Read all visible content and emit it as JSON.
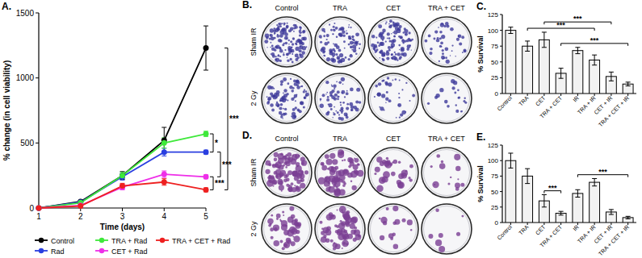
{
  "chart_data": [
    {
      "type": "line",
      "title": "A.",
      "x_label": "Time (days)",
      "y_label": "% change (in cell viability)",
      "x": [
        1,
        2,
        3,
        4,
        5
      ],
      "xlim": [
        1,
        5
      ],
      "xticks": [
        1,
        2,
        3,
        4,
        5
      ],
      "ylim": [
        0,
        1500
      ],
      "yticks": [
        0,
        500,
        1000,
        1500
      ],
      "legend": "bottom",
      "marker": "circle",
      "series": [
        {
          "name": "Control",
          "color": "#000000",
          "values": [
            0,
            50,
            250,
            520,
            1230
          ],
          "errors": [
            0,
            8,
            30,
            100,
            170
          ]
        },
        {
          "name": "Rad",
          "color": "#2a3fe0",
          "values": [
            0,
            45,
            240,
            430,
            430
          ],
          "errors": [
            0,
            6,
            25,
            30,
            15
          ]
        },
        {
          "name": "TRA + Rad",
          "color": "#3ee83a",
          "values": [
            0,
            40,
            250,
            500,
            570
          ],
          "errors": [
            0,
            6,
            25,
            40,
            20
          ]
        },
        {
          "name": "CET + Rad",
          "color": "#ee2ee8",
          "values": [
            0,
            20,
            160,
            260,
            240
          ],
          "errors": [
            0,
            5,
            20,
            25,
            15
          ]
        },
        {
          "name": "TRA + CET + Rad",
          "color": "#ee2020",
          "values": [
            0,
            15,
            170,
            200,
            140
          ],
          "errors": [
            0,
            5,
            20,
            25,
            15
          ]
        }
      ],
      "annotations": [
        {
          "label": "*",
          "between": [
            "TRA + Rad",
            "Rad"
          ]
        },
        {
          "label": "***",
          "between": [
            "Rad",
            "CET + Rad"
          ]
        },
        {
          "label": "***",
          "between": [
            "Control",
            "TRA + CET + Rad"
          ]
        },
        {
          "label": "***",
          "between": [
            "CET + Rad",
            "TRA + CET + Rad"
          ]
        }
      ]
    },
    {
      "type": "bar",
      "title": "C.",
      "y_label": "% Survival",
      "categories": [
        "Control",
        "TRA",
        "CET",
        "TRA + CET",
        "IR",
        "TRA + IR",
        "CET + IR",
        "TRA + CET + IR"
      ],
      "values": [
        100,
        75,
        85,
        32,
        68,
        53,
        27,
        15
      ],
      "errors": [
        5,
        8,
        12,
        8,
        5,
        8,
        7,
        3
      ],
      "color": "#f2f2f2",
      "ylim": [
        0,
        125
      ],
      "yticks": [
        0,
        25,
        50,
        75,
        100,
        125
      ],
      "annotations": [
        {
          "label": "***",
          "between": [
            "TRA + CET",
            "TRA + CET + IR"
          ]
        },
        {
          "label": "***",
          "between": [
            "TRA",
            "TRA + IR"
          ]
        },
        {
          "label": "***",
          "between": [
            "CET",
            "CET + IR"
          ]
        }
      ]
    },
    {
      "type": "bar",
      "title": "E.",
      "y_label": "% Survival",
      "categories": [
        "Control",
        "TRA",
        "CET",
        "TRA + CET",
        "IR",
        "TRA + IR",
        "CET + IR",
        "TRA + CET + IR"
      ],
      "values": [
        100,
        75,
        35,
        15,
        47,
        65,
        17,
        8
      ],
      "errors": [
        12,
        12,
        10,
        3,
        6,
        6,
        4,
        2
      ],
      "color": "#f2f2f2",
      "ylim": [
        0,
        125
      ],
      "yticks": [
        0,
        25,
        50,
        75,
        100,
        125
      ],
      "annotations": [
        {
          "label": "***",
          "between": [
            "CET",
            "TRA + CET"
          ]
        },
        {
          "label": "***",
          "between": [
            "IR",
            "TRA + CET + IR"
          ]
        }
      ]
    }
  ],
  "plates": [
    {
      "title": "B.",
      "columns": [
        "Control",
        "TRA",
        "CET",
        "TRA + CET"
      ],
      "rows": [
        "Sham IR",
        "2 Gy"
      ],
      "color": "#3d3a9a"
    },
    {
      "title": "D.",
      "columns": [
        "Control",
        "TRA",
        "CET",
        "TRA + CET"
      ],
      "rows": [
        "Sham IR",
        "2 Gy"
      ],
      "color": "#7b3f94"
    }
  ]
}
